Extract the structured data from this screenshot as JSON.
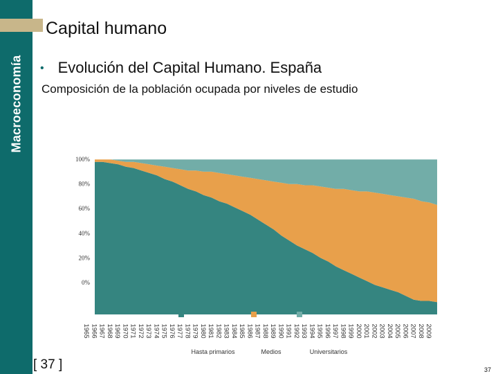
{
  "sidebar": {
    "label": "Macroeconomía"
  },
  "header": {
    "title": "Capital humano"
  },
  "bullet": {
    "text": "Evolución del Capital Humano. España"
  },
  "subtitle": "Composición de la población ocupada por niveles de estudio",
  "slide_number": "[ 37 ]",
  "page_number": "37",
  "colors": {
    "sidebar": "#0e6b6b",
    "accent": "#c8b68a",
    "primarios": "#358580",
    "medios": "#e8a04b",
    "universitarios": "#72ada8"
  },
  "chart_data": {
    "type": "area",
    "stacked": true,
    "x": [
      "1965",
      "1966",
      "1967",
      "1968",
      "1969",
      "1970",
      "1971",
      "1972",
      "1973",
      "1974",
      "1975",
      "1976",
      "1977",
      "1978",
      "1979",
      "1980",
      "1981",
      "1982",
      "1983",
      "1984",
      "1985",
      "1986",
      "1987",
      "1988",
      "1989",
      "1990",
      "1991",
      "1992",
      "1993",
      "1994",
      "1995",
      "1996",
      "1997",
      "1998",
      "1999",
      "2000",
      "2001",
      "2002",
      "2003",
      "2004",
      "2005",
      "2006",
      "2007",
      "2008",
      "2009"
    ],
    "series": [
      {
        "name": "Hasta primarios",
        "values": [
          98,
          98,
          97,
          96,
          94,
          93,
          91,
          89,
          87,
          84,
          82,
          79,
          76,
          74,
          71,
          69,
          66,
          64,
          61,
          58,
          55,
          51,
          47,
          43,
          38,
          34,
          30,
          27,
          24,
          20,
          17,
          13,
          10,
          7,
          4,
          1,
          -2,
          -4,
          -6,
          -8,
          -11,
          -14,
          -15,
          -15,
          -16
        ]
      },
      {
        "name": "Medios",
        "values": [
          2,
          2,
          3,
          3,
          4,
          5,
          6,
          7,
          8,
          10,
          11,
          13,
          15,
          17,
          19,
          21,
          23,
          24,
          26,
          28,
          30,
          33,
          36,
          39,
          43,
          46,
          50,
          52,
          55,
          58,
          60,
          63,
          66,
          68,
          70,
          73,
          75,
          76,
          77,
          78,
          80,
          82,
          81,
          80,
          79
        ]
      },
      {
        "name": "Universitarios",
        "values": [
          0,
          0,
          0,
          1,
          2,
          2,
          3,
          4,
          5,
          6,
          7,
          8,
          9,
          9,
          10,
          10,
          11,
          12,
          13,
          14,
          15,
          16,
          17,
          18,
          19,
          20,
          20,
          21,
          21,
          22,
          23,
          24,
          24,
          25,
          26,
          26,
          27,
          28,
          29,
          30,
          31,
          32,
          34,
          35,
          37
        ]
      }
    ],
    "y_ticks": [
      "100%",
      "80%",
      "60%",
      "40%",
      "20%",
      "0%"
    ],
    "ylim": [
      -26,
      126
    ],
    "legend": [
      "Hasta primarios",
      "Medios",
      "Universitarios"
    ]
  }
}
